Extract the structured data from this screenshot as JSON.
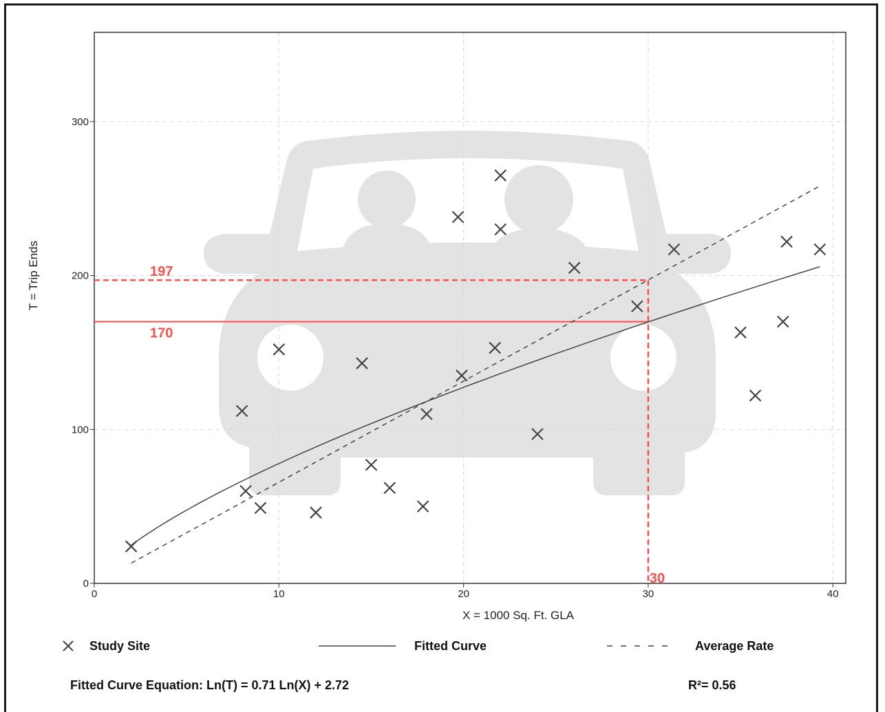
{
  "chart_data": {
    "type": "scatter",
    "xlabel": "X = 1000 Sq. Ft. GLA",
    "ylabel": "T = Trip Ends",
    "xlim": [
      0,
      40.7
    ],
    "ylim": [
      0,
      358
    ],
    "x_ticks": [
      0,
      10,
      20,
      30,
      40
    ],
    "y_ticks": [
      0,
      100,
      200,
      300
    ],
    "grid": true,
    "series": [
      {
        "name": "Study Site",
        "marker": "x",
        "points": [
          [
            2,
            24
          ],
          [
            8,
            112
          ],
          [
            8.2,
            60
          ],
          [
            9,
            49
          ],
          [
            10,
            152
          ],
          [
            12,
            46
          ],
          [
            14.5,
            143
          ],
          [
            15,
            77
          ],
          [
            16,
            62
          ],
          [
            17.8,
            50
          ],
          [
            18,
            110
          ],
          [
            19.7,
            238
          ],
          [
            19.9,
            135
          ],
          [
            21.7,
            153
          ],
          [
            22,
            265
          ],
          [
            22,
            230
          ],
          [
            24,
            97
          ],
          [
            26,
            205
          ],
          [
            29.4,
            180
          ],
          [
            31.4,
            217
          ],
          [
            35,
            163
          ],
          [
            35.8,
            122
          ],
          [
            37.3,
            170
          ],
          [
            37.5,
            222
          ],
          [
            39.3,
            217
          ]
        ]
      },
      {
        "name": "Fitted Curve",
        "style": "solid",
        "equation": "Ln(T) = 0.71 Ln(X) + 2.72",
        "x_range": [
          2,
          39.3
        ]
      },
      {
        "name": "Average Rate",
        "style": "dashed",
        "rate": 6.57,
        "x_range": [
          2,
          39.3
        ]
      }
    ],
    "annotations": [
      {
        "label": "197",
        "y": 197,
        "x": 30,
        "style": "dashed",
        "color": "#ff4d4d"
      },
      {
        "label": "170",
        "y": 170,
        "x": 30,
        "style": "solid",
        "color": "#ff4d4d"
      },
      {
        "label": "30",
        "x": 30,
        "color": "#ff4d4d"
      }
    ],
    "colors": {
      "data": "#444444",
      "highlight": "#ff4d4d",
      "grid": "#d9d9d9",
      "watermark": "#e3e3e3"
    }
  },
  "legend": {
    "study_site": "Study Site",
    "fitted_curve": "Fitted Curve",
    "average_rate": "Average Rate"
  },
  "equation_text": "Fitted Curve Equation: Ln(T) = 0.71 Ln(X) + 2.72",
  "r_squared_text": "R²= 0.56",
  "watermark_icon": "car-with-passengers-icon"
}
